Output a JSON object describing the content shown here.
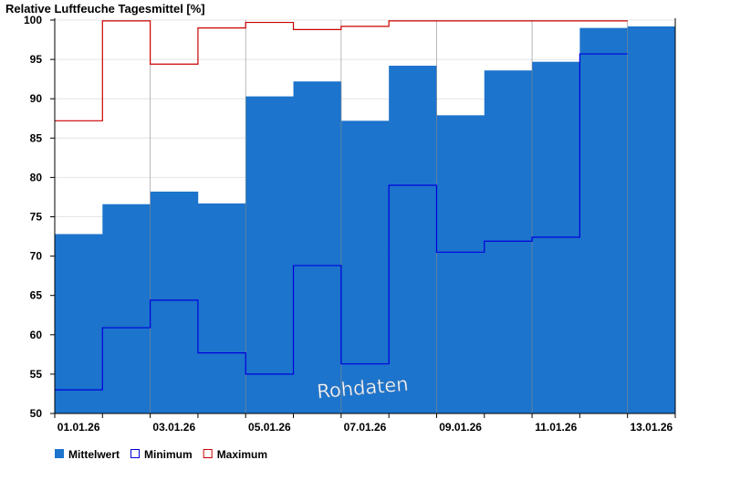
{
  "chart_data": {
    "type": "bar",
    "title": "Relative Luftfeuche Tagesmittel [%]",
    "watermark": "Rohdaten",
    "ylim": [
      50,
      100
    ],
    "yticks": [
      50,
      55,
      60,
      65,
      70,
      75,
      80,
      85,
      90,
      95,
      100
    ],
    "x_tick_labels": [
      "01.01.26",
      "03.01.26",
      "05.01.26",
      "07.01.26",
      "09.01.26",
      "11.01.26",
      "13.01.26"
    ],
    "days": [
      "01.01.26",
      "02.01.26",
      "03.01.26",
      "04.01.26",
      "05.01.26",
      "06.01.26",
      "07.01.26",
      "08.01.26",
      "09.01.26",
      "10.01.26",
      "11.01.26",
      "12.01.26",
      "13.01.26"
    ],
    "grid": true,
    "legend_position": "bottom-left",
    "series": [
      {
        "name": "Mittelwert",
        "kind": "bar",
        "color": "#1c74cc",
        "values": [
          72.8,
          76.6,
          78.2,
          76.7,
          90.3,
          92.2,
          87.2,
          94.2,
          87.9,
          93.6,
          94.7,
          99.0,
          99.2
        ]
      },
      {
        "name": "Minimum",
        "kind": "step",
        "color": "#0000dd",
        "values": [
          53.0,
          60.9,
          64.4,
          57.7,
          55.0,
          68.8,
          56.3,
          79.0,
          70.5,
          71.9,
          72.4,
          95.7
        ]
      },
      {
        "name": "Maximum",
        "kind": "step",
        "color": "#cc0000",
        "values": [
          87.2,
          99.9,
          94.4,
          99.0,
          99.7,
          98.8,
          99.2,
          99.9,
          99.9,
          99.9,
          99.9,
          99.9
        ]
      }
    ]
  }
}
